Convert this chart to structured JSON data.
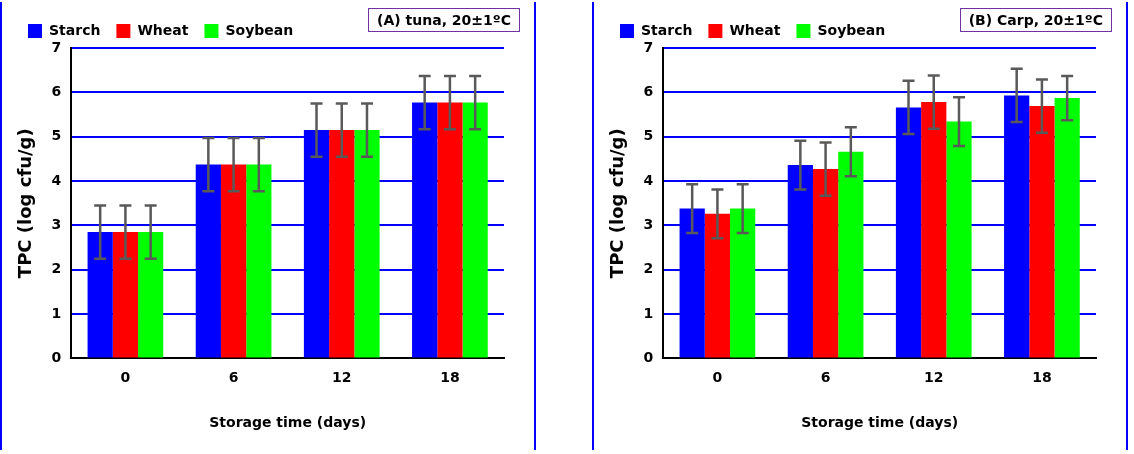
{
  "chart_data": [
    {
      "type": "bar",
      "title": "(A) tuna, 20±1ºC",
      "xlabel": "Storage time (days)",
      "ylabel": "TPC (log cfu/g)",
      "categories": [
        "0",
        "6",
        "12",
        "18"
      ],
      "ylim": [
        0,
        7
      ],
      "yticks": [
        0,
        1,
        2,
        3,
        4,
        5,
        6,
        7
      ],
      "grid": "y",
      "legend": "top left",
      "series": [
        {
          "name": "Starch",
          "color": "#0000ff",
          "values": [
            2.85,
            4.37,
            5.15,
            5.77
          ],
          "errors": [
            0.6,
            0.6,
            0.6,
            0.6
          ]
        },
        {
          "name": "Wheat",
          "color": "#ff0000",
          "values": [
            2.85,
            4.37,
            5.15,
            5.77
          ],
          "errors": [
            0.6,
            0.6,
            0.6,
            0.6
          ]
        },
        {
          "name": "Soybean",
          "color": "#00ff00",
          "values": [
            2.85,
            4.37,
            5.15,
            5.77
          ],
          "errors": [
            0.6,
            0.6,
            0.6,
            0.6
          ]
        }
      ]
    },
    {
      "type": "bar",
      "title": "(B) Carp, 20±1ºC",
      "xlabel": "Storage time (days)",
      "ylabel": "TPC (log cfu/g)",
      "categories": [
        "0",
        "6",
        "12",
        "18"
      ],
      "ylim": [
        0,
        7
      ],
      "yticks": [
        0,
        1,
        2,
        3,
        4,
        5,
        6,
        7
      ],
      "grid": "y",
      "legend": "top left",
      "series": [
        {
          "name": "Starch",
          "color": "#0000ff",
          "values": [
            3.38,
            4.36,
            5.66,
            5.93
          ],
          "errors": [
            0.55,
            0.55,
            0.6,
            0.6
          ]
        },
        {
          "name": "Wheat",
          "color": "#ff0000",
          "values": [
            3.26,
            4.27,
            5.78,
            5.69
          ],
          "errors": [
            0.55,
            0.6,
            0.6,
            0.6
          ]
        },
        {
          "name": "Soybean",
          "color": "#00ff00",
          "values": [
            3.38,
            4.66,
            5.34,
            5.87
          ],
          "errors": [
            0.55,
            0.55,
            0.55,
            0.5
          ]
        }
      ]
    }
  ]
}
